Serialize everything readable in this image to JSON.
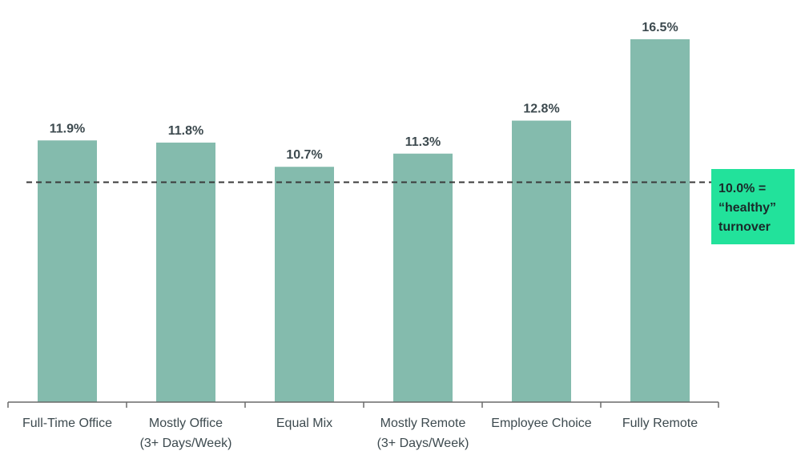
{
  "chart_data": {
    "type": "bar",
    "title": "",
    "xlabel": "",
    "ylabel": "",
    "ylim": [
      0,
      16.5
    ],
    "grid": false,
    "categories": [
      [
        "Full-Time Office"
      ],
      [
        "Mostly Office",
        "(3+ Days/Week)"
      ],
      [
        "Equal Mix"
      ],
      [
        "Mostly Remote",
        "(3+ Days/Week)"
      ],
      [
        "Employee Choice"
      ],
      [
        "Fully Remote"
      ]
    ],
    "values": [
      11.9,
      11.8,
      10.7,
      11.3,
      12.8,
      16.5
    ],
    "value_labels": [
      "11.9%",
      "11.8%",
      "10.7%",
      "11.3%",
      "12.8%",
      "16.5%"
    ],
    "bar_color": "#84bbad",
    "reference_line": {
      "value": 10.0,
      "style": "dashed",
      "color": "#3a3a3a",
      "label_lines": [
        "10.0% =",
        "“healthy”",
        "turnover"
      ],
      "label_background": "#22e29b"
    }
  }
}
